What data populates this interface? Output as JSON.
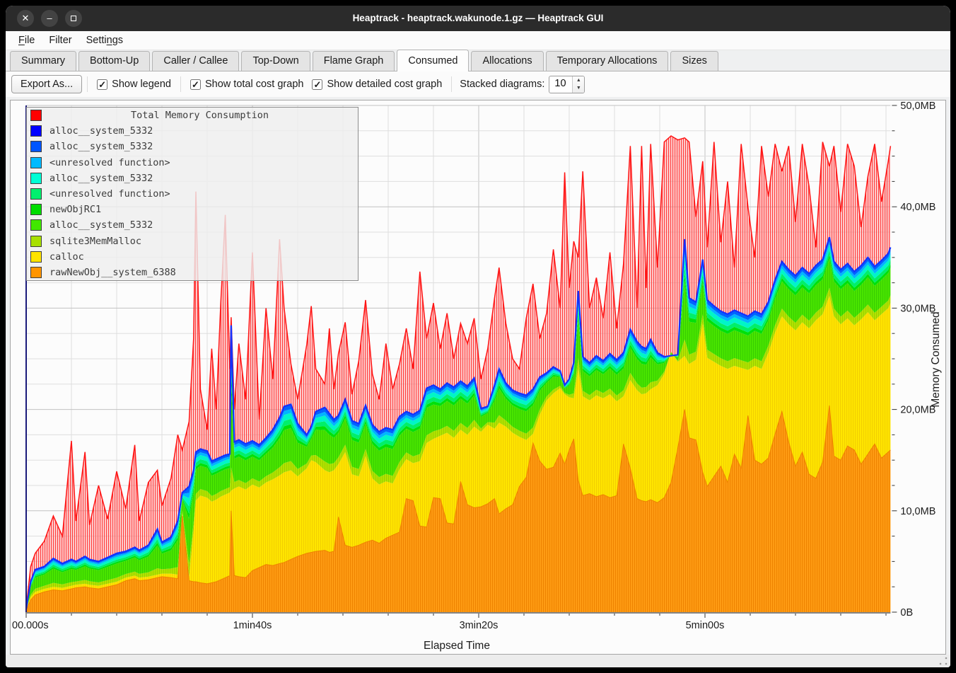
{
  "window": {
    "title": "Heaptrack - heaptrack.wakunode.1.gz — Heaptrack GUI"
  },
  "menu": {
    "items": [
      {
        "label": "File",
        "accel": 0
      },
      {
        "label": "Filter",
        "accel": -1
      },
      {
        "label": "Settings",
        "accel": 5
      }
    ]
  },
  "tabs": {
    "active": "Consumed",
    "items": [
      "Summary",
      "Bottom-Up",
      "Caller / Callee",
      "Top-Down",
      "Flame Graph",
      "Consumed",
      "Allocations",
      "Temporary Allocations",
      "Sizes"
    ]
  },
  "toolbar": {
    "export_label": "Export As...",
    "checkboxes": [
      {
        "label": "Show legend",
        "checked": true
      },
      {
        "label": "Show total cost graph",
        "checked": true
      },
      {
        "label": "Show detailed cost graph",
        "checked": true
      }
    ],
    "stacked_label": "Stacked diagrams:",
    "stacked_value": "10"
  },
  "chart_data": {
    "type": "area",
    "title": "Total Memory Consumption",
    "xlabel": "Elapsed Time",
    "ylabel": "Memory Consumed",
    "x_unit": "seconds",
    "y_unit": "MB",
    "xlim": [
      0,
      382
    ],
    "ylim": [
      0,
      50
    ],
    "grid": true,
    "legend_position": "top-left",
    "x_ticks": {
      "minor_step": 20,
      "major": [
        {
          "t": 0,
          "label": "00.000s"
        },
        {
          "t": 100,
          "label": "1min40s"
        },
        {
          "t": 200,
          "label": "3min20s"
        },
        {
          "t": 300,
          "label": "5min00s"
        }
      ]
    },
    "y_ticks": {
      "minor_step": 2.5,
      "major": [
        {
          "v": 0,
          "label": "0B"
        },
        {
          "v": 10,
          "label": "10,0MB"
        },
        {
          "v": 20,
          "label": "20,0MB"
        },
        {
          "v": 30,
          "label": "30,0MB"
        },
        {
          "v": 40,
          "label": "40,0MB"
        },
        {
          "v": 50,
          "label": "50,0MB"
        }
      ]
    },
    "legend": [
      {
        "label": "Total Memory Consumption",
        "color": "#ff0000",
        "header": true
      },
      {
        "label": "alloc__system_5332",
        "color": "#0000ff"
      },
      {
        "label": "alloc__system_5332",
        "color": "#0055ff"
      },
      {
        "label": "<unresolved function>",
        "color": "#00baff"
      },
      {
        "label": "alloc__system_5332",
        "color": "#00ffd5"
      },
      {
        "label": "<unresolved function>",
        "color": "#00f06e"
      },
      {
        "label": "newObjRC1",
        "color": "#00dd00"
      },
      {
        "label": "alloc__system_5332",
        "color": "#41e800"
      },
      {
        "label": "sqlite3MemMalloc",
        "color": "#a8e000"
      },
      {
        "label": "calloc",
        "color": "#ffe300"
      },
      {
        "label": "rawNewObj__system_6388",
        "color": "#ff9500"
      }
    ],
    "x": [
      0,
      2,
      4,
      8,
      12,
      16,
      20,
      22,
      26,
      28,
      32,
      36,
      40,
      44,
      48,
      50,
      54,
      58,
      60,
      64,
      67,
      69,
      72,
      74,
      75,
      77,
      80,
      82,
      84,
      86,
      88,
      90,
      90.6,
      92,
      94,
      97,
      100,
      103,
      106,
      109,
      112,
      114,
      117,
      120,
      124,
      126,
      128,
      132,
      134,
      136,
      138,
      141,
      144,
      147,
      150,
      153,
      156,
      159,
      162,
      165,
      168,
      171,
      174,
      177,
      180,
      183,
      186,
      189,
      192,
      195,
      198,
      201,
      204,
      207,
      209,
      212,
      215,
      218,
      221,
      224,
      227,
      230,
      233,
      236,
      238,
      240,
      242,
      244,
      246,
      249,
      252,
      255,
      258,
      261,
      264,
      267,
      270,
      272,
      274,
      276,
      279,
      282,
      285,
      288,
      291,
      293,
      296,
      299,
      301,
      304,
      307,
      310,
      313,
      316,
      319,
      322,
      325,
      328,
      331,
      334,
      337,
      340,
      343,
      346,
      349,
      352,
      355,
      357,
      360,
      363,
      366,
      369,
      372,
      375,
      378,
      381,
      382
    ],
    "series": {
      "rawNewObj__system_6388_top": {
        "color": "#ff9d14",
        "values": [
          0.2,
          1.2,
          1.7,
          2.0,
          2.2,
          2.1,
          2.3,
          2.4,
          2.5,
          2.4,
          2.3,
          2.5,
          2.7,
          3.1,
          3.3,
          3.1,
          3.2,
          3.4,
          3.5,
          3.4,
          3.3,
          9.5,
          3.1,
          3.0,
          3.0,
          2.9,
          2.8,
          2.9,
          3.0,
          3.2,
          3.4,
          3.6,
          10.0,
          3.6,
          3.5,
          3.4,
          4.1,
          4.4,
          4.7,
          4.6,
          4.8,
          4.9,
          5.2,
          5.5,
          5.8,
          5.9,
          6.0,
          6.1,
          5.9,
          6.0,
          9.4,
          6.6,
          6.4,
          6.6,
          6.9,
          7.1,
          6.8,
          7.3,
          7.6,
          7.9,
          11.2,
          11.0,
          8.5,
          8.4,
          11.3,
          11.2,
          8.8,
          8.7,
          12.9,
          10.6,
          10.3,
          10.4,
          10.7,
          11.2,
          9.7,
          10.2,
          10.6,
          12.4,
          13.3,
          16.7,
          14.9,
          14.1,
          14.3,
          15.7,
          14.6,
          16.0,
          17.1,
          13.0,
          11.5,
          11.7,
          11.4,
          11.6,
          11.3,
          11.5,
          16.6,
          14.2,
          11.2,
          11.0,
          10.9,
          11.1,
          10.8,
          11.3,
          12.8,
          16.2,
          20.0,
          17.2,
          17.0,
          13.8,
          12.4,
          13.4,
          14.4,
          12.8,
          15.6,
          14.2,
          19.4,
          15.0,
          14.6,
          15.2,
          17.6,
          19.8,
          16.8,
          14.4,
          15.8,
          13.6,
          13.2,
          14.8,
          20.4,
          15.4,
          15.0,
          16.4,
          16.0,
          14.6,
          15.6,
          16.6,
          15.2,
          15.8,
          16.0
        ]
      },
      "calloc_top": {
        "color": "#ffe600",
        "values": [
          0.3,
          1.5,
          2.0,
          2.3,
          2.5,
          2.4,
          2.6,
          2.7,
          2.8,
          2.7,
          2.6,
          2.8,
          3.0,
          3.4,
          3.6,
          3.4,
          3.5,
          3.7,
          3.8,
          3.8,
          3.7,
          9.8,
          3.5,
          8.0,
          11.0,
          11.5,
          11.3,
          10.9,
          11.1,
          11.4,
          11.6,
          11.8,
          12.0,
          12.2,
          12.4,
          12.1,
          12.6,
          12.3,
          12.8,
          13.1,
          13.5,
          13.8,
          14.0,
          13.4,
          14.2,
          15.0,
          14.8,
          14.0,
          13.8,
          14.0,
          14.6,
          15.8,
          13.6,
          13.4,
          15.4,
          13.2,
          12.6,
          12.9,
          12.7,
          14.1,
          15.1,
          14.7,
          14.9,
          16.7,
          17.1,
          17.4,
          17.7,
          17.2,
          18.0,
          17.5,
          18.3,
          17.8,
          18.5,
          18.1,
          18.7,
          18.3,
          17.7,
          17.3,
          17.0,
          17.6,
          19.5,
          20.9,
          21.6,
          22.1,
          21.5,
          21.2,
          21.1,
          24.0,
          21.3,
          20.9,
          21.4,
          21.1,
          21.5,
          20.8,
          21.3,
          22.9,
          21.9,
          21.5,
          21.6,
          22.0,
          22.4,
          23.5,
          25.7,
          24.7,
          25.3,
          24.5,
          24.9,
          28.5,
          25.1,
          24.7,
          24.3,
          24.0,
          24.3,
          24.1,
          23.9,
          24.3,
          24.0,
          25.6,
          27.6,
          29.2,
          28.4,
          27.8,
          28.6,
          28.0,
          28.8,
          29.4,
          31.2,
          29.2,
          28.4,
          29.0,
          28.3,
          28.9,
          29.6,
          28.8,
          29.4,
          30.0,
          30.5
        ]
      },
      "stack_top_alloc__system_5332": {
        "color": "#1431ff",
        "values": [
          0.3,
          3.0,
          4.2,
          4.5,
          5.3,
          4.8,
          5.2,
          5.0,
          5.5,
          5.2,
          5.0,
          5.4,
          5.8,
          6.0,
          6.4,
          6.1,
          6.6,
          8.2,
          6.9,
          7.4,
          9.0,
          11.8,
          12.4,
          14.0,
          15.8,
          16.1,
          15.9,
          14.9,
          15.1,
          15.3,
          15.5,
          15.6,
          28.3,
          16.8,
          17.0,
          16.6,
          16.9,
          16.5,
          17.2,
          18.0,
          19.2,
          20.3,
          20.5,
          18.6,
          17.5,
          18.3,
          19.8,
          20.2,
          19.6,
          19.0,
          19.4,
          21.0,
          18.9,
          18.6,
          20.4,
          18.5,
          17.8,
          18.2,
          18.0,
          19.3,
          19.8,
          19.5,
          19.9,
          22.1,
          22.4,
          22.0,
          22.6,
          22.2,
          22.8,
          22.3,
          23.1,
          20.1,
          20.3,
          22.4,
          24.0,
          22.6,
          21.9,
          21.6,
          21.4,
          22.0,
          23.2,
          23.6,
          24.2,
          23.8,
          22.4,
          23.0,
          24.6,
          31.7,
          25.2,
          24.6,
          25.3,
          24.8,
          25.5,
          24.9,
          25.6,
          27.9,
          26.7,
          26.2,
          26.0,
          26.9,
          25.6,
          25.2,
          25.3,
          25.4,
          36.8,
          31.0,
          30.6,
          34.8,
          30.8,
          30.2,
          29.7,
          29.4,
          29.8,
          29.5,
          29.2,
          29.7,
          29.4,
          30.6,
          32.8,
          34.6,
          33.8,
          33.2,
          34.0,
          33.4,
          34.2,
          34.8,
          37.0,
          34.6,
          33.8,
          34.4,
          33.6,
          34.2,
          35.0,
          34.1,
          34.7,
          35.4,
          36.0
        ]
      },
      "total_memory_consumption": {
        "color": "#ff1414",
        "values": [
          0.4,
          4.5,
          5.8,
          7.0,
          9.5,
          7.5,
          16.9,
          9.0,
          15.8,
          8.6,
          12.5,
          9.2,
          13.9,
          10.2,
          16.5,
          9.0,
          12.8,
          14.0,
          10.5,
          13.2,
          17.5,
          16.0,
          18.8,
          27.0,
          41.5,
          22.0,
          18.0,
          26.0,
          20.0,
          30.5,
          39.2,
          24.0,
          29.1,
          20.0,
          26.5,
          21.0,
          35.5,
          19.0,
          30.0,
          23.0,
          36.8,
          30.0,
          24.5,
          21.0,
          26.4,
          30.2,
          24.0,
          22.5,
          28.0,
          22.0,
          25.5,
          28.6,
          21.5,
          24.8,
          30.8,
          23.5,
          21.0,
          26.5,
          22.0,
          24.5,
          28.0,
          24.0,
          33.6,
          27.0,
          30.5,
          26.0,
          29.5,
          25.0,
          28.5,
          26.5,
          29.0,
          23.0,
          26.0,
          31.0,
          34.0,
          28.5,
          25.0,
          24.0,
          29.0,
          32.4,
          27.0,
          29.5,
          35.8,
          30.0,
          43.4,
          32.0,
          36.6,
          35.0,
          43.5,
          30.0,
          33.0,
          29.0,
          35.5,
          28.0,
          34.4,
          46.0,
          30.0,
          46.0,
          32.0,
          46.2,
          34.0,
          46.4,
          47.0,
          46.6,
          46.8,
          46.4,
          39.0,
          44.5,
          36.0,
          46.4,
          36.5,
          42.5,
          34.0,
          46.2,
          40.0,
          35.0,
          46.0,
          41.0,
          46.2,
          43.5,
          46.0,
          38.5,
          46.2,
          42.0,
          36.0,
          46.4,
          44.0,
          46.0,
          39.5,
          46.2,
          44.0,
          38.0,
          43.0,
          46.2,
          40.5,
          44.5,
          46.0
        ]
      },
      "band_split_of_gap": {
        "sqlite3MemMalloc": 0.14,
        "alloc__system_5332_green": 0.5,
        "newObjRC1": 0.06,
        "unresolved_spring": 0.08,
        "alloc__system_5332_cyan": 0.09,
        "unresolved_lightblue": 0.06,
        "alloc__system_5332_blue": 0.07
      },
      "band_colors": [
        "#b2e600",
        "#4ae600",
        "#00e00a",
        "#00ef6a",
        "#00f5c8",
        "#00b4ff",
        "#0063ff"
      ]
    }
  }
}
